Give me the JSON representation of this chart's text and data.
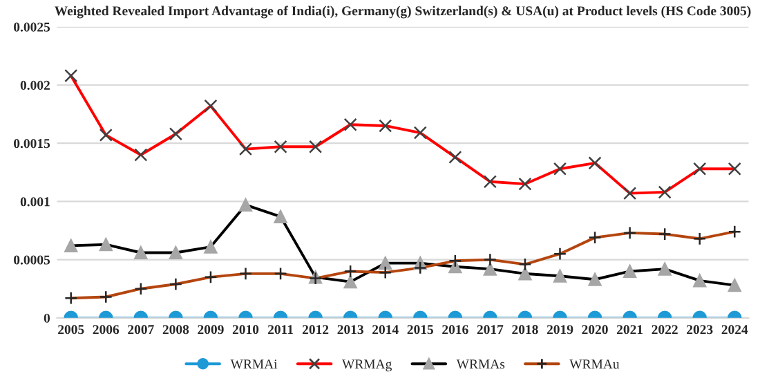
{
  "chart_data": {
    "type": "line",
    "title": "Weighted Revealed Import Advantage of India(i), Germany(g) Switzerland(s) & USA(u) at Product levels (HS Code 3005)",
    "categories": [
      "2005",
      "2006",
      "2007",
      "2008",
      "2009",
      "2010",
      "2011",
      "2012",
      "2013",
      "2014",
      "2015",
      "2016",
      "2017",
      "2018",
      "2019",
      "2020",
      "2021",
      "2022",
      "2023",
      "2024"
    ],
    "series": [
      {
        "name": "WRMAi",
        "color": "#1e9ad6",
        "marker": "circle",
        "values": [
          0,
          0,
          0,
          0,
          0,
          0,
          0,
          0,
          0,
          0,
          0,
          0,
          0,
          0,
          0,
          0,
          0,
          0,
          0,
          0
        ]
      },
      {
        "name": "WRMAg",
        "color": "#ff0000",
        "marker": "cross",
        "values": [
          0.00208,
          0.00157,
          0.0014,
          0.00158,
          0.00182,
          0.00145,
          0.00147,
          0.00147,
          0.00166,
          0.00165,
          0.00159,
          0.00138,
          0.00117,
          0.00115,
          0.00128,
          0.00133,
          0.00107,
          0.00108,
          0.00128,
          0.00128
        ]
      },
      {
        "name": "WRMAs",
        "color": "#000000",
        "marker": "triangle",
        "values": [
          0.00062,
          0.00063,
          0.00056,
          0.00056,
          0.00061,
          0.00097,
          0.00087,
          0.00035,
          0.00031,
          0.00047,
          0.00047,
          0.00044,
          0.00042,
          0.00038,
          0.00036,
          0.00033,
          0.0004,
          0.00042,
          0.00032,
          0.00028
        ]
      },
      {
        "name": "WRMAu",
        "color": "#b4450e",
        "marker": "plus",
        "values": [
          0.00017,
          0.00018,
          0.00025,
          0.00029,
          0.00035,
          0.00038,
          0.00038,
          0.00034,
          0.0004,
          0.00039,
          0.00043,
          0.00049,
          0.0005,
          0.00046,
          0.00055,
          0.00069,
          0.00073,
          0.00072,
          0.00068,
          0.00074
        ]
      }
    ],
    "ylim": [
      0,
      0.0025
    ],
    "yticks": [
      0,
      0.0005,
      0.001,
      0.0015,
      0.002,
      0.0025
    ],
    "grid": "y",
    "legend": "bottom"
  }
}
